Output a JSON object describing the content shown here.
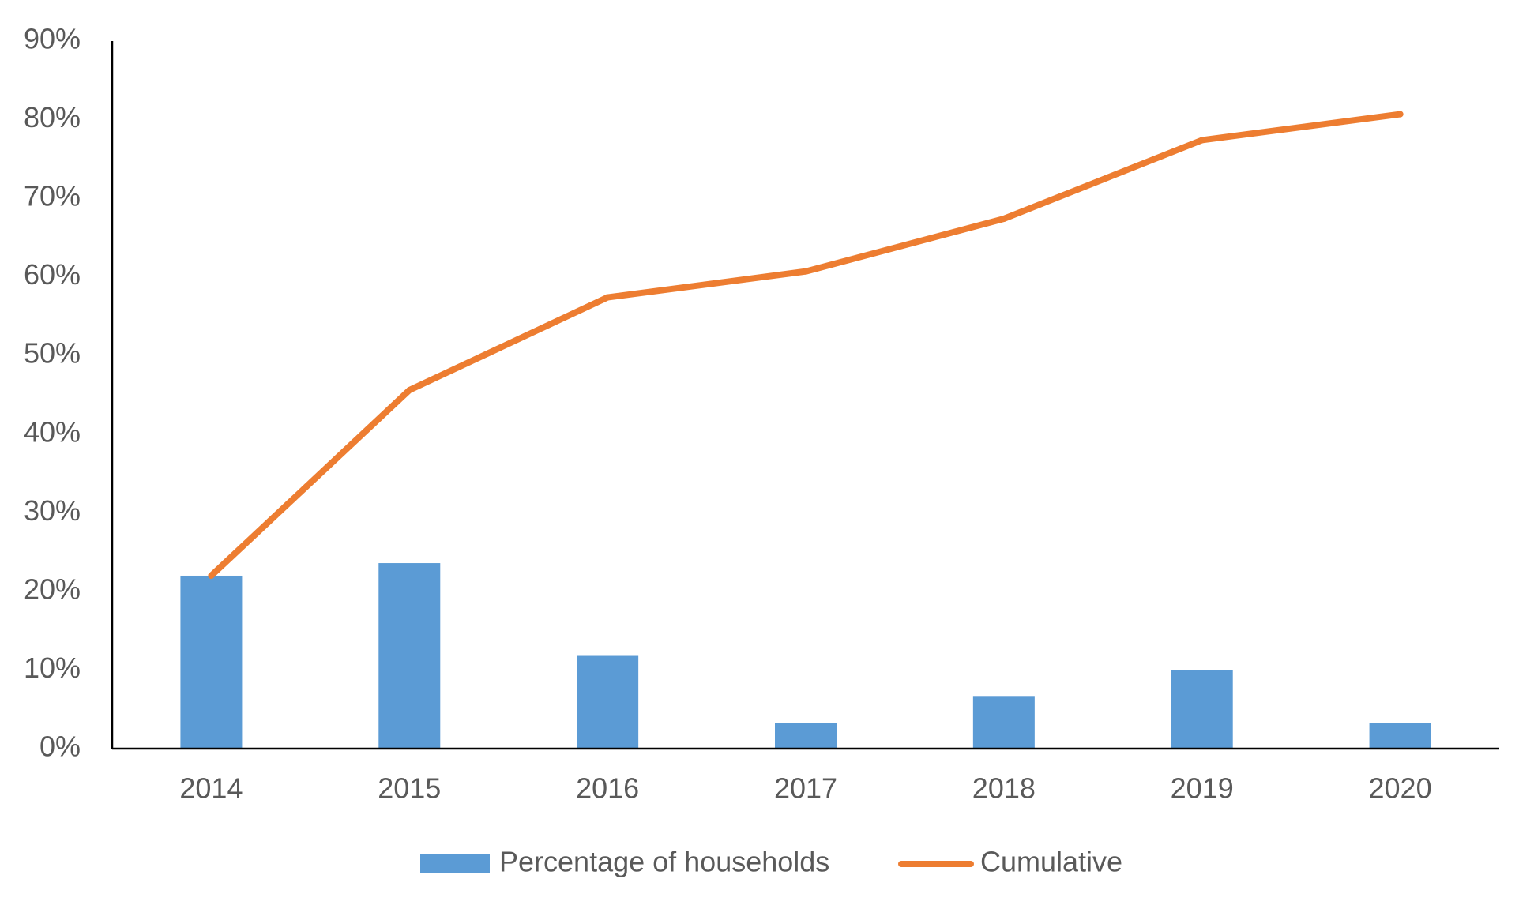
{
  "chart_data": {
    "type": "bar",
    "categories": [
      "2014",
      "2015",
      "2016",
      "2017",
      "2018",
      "2019",
      "2020"
    ],
    "series": [
      {
        "name": "Percentage of households",
        "type": "bar",
        "values": [
          22.0,
          23.6,
          11.8,
          3.3,
          6.7,
          10.0,
          3.3
        ],
        "color": "#5B9BD5"
      },
      {
        "name": "Cumulative",
        "type": "line",
        "values": [
          22.0,
          45.6,
          57.4,
          60.7,
          67.4,
          77.4,
          80.7
        ],
        "color": "#ED7D31"
      }
    ],
    "y_ticks": [
      "0%",
      "10%",
      "20%",
      "30%",
      "40%",
      "50%",
      "60%",
      "70%",
      "80%",
      "90%"
    ],
    "ylim": [
      0,
      90
    ],
    "title": "",
    "xlabel": "",
    "ylabel": "",
    "grid": false,
    "legend_position": "bottom"
  }
}
